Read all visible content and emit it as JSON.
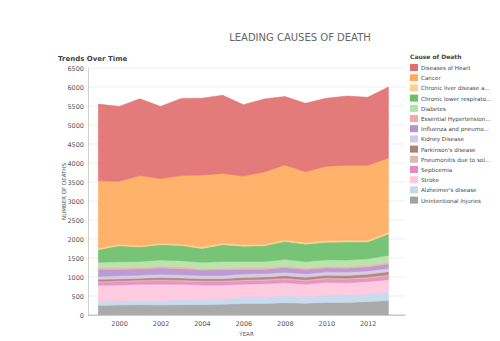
{
  "chart_data": {
    "type": "area",
    "title": "LEADING CAUSES OF DEATH",
    "subtitle": "Trends Over Time",
    "x_label": "YEAR",
    "y_label": "NUMBER OF DEATHS",
    "legend_title": "Cause of Death",
    "legend": "right",
    "stacked": true,
    "grid": true,
    "x": [
      1999,
      2000,
      2001,
      2002,
      2003,
      2004,
      2005,
      2006,
      2007,
      2008,
      2009,
      2010,
      2011,
      2012,
      2013
    ],
    "xlim": [
      1998.5,
      2013.8
    ],
    "xticks": [
      2000,
      2002,
      2004,
      2006,
      2008,
      2010,
      2012
    ],
    "ylim": [
      0,
      6500
    ],
    "yticks": [
      0,
      500,
      1000,
      1500,
      2000,
      2500,
      3000,
      3500,
      4000,
      4500,
      5000,
      5500,
      6000,
      6500
    ],
    "series": [
      {
        "name": "Diseases of Heart",
        "color": "#e0706e",
        "values": [
          2020,
          1970,
          2020,
          1900,
          2030,
          2020,
          2060,
          1880,
          1920,
          1800,
          1800,
          1790,
          1820,
          1790,
          1870
        ]
      },
      {
        "name": "Cancer",
        "color": "#ffab5e",
        "values": [
          1770,
          1660,
          1840,
          1700,
          1800,
          1890,
          1830,
          1800,
          1900,
          1970,
          1860,
          1950,
          1970,
          1970,
          1950
        ]
      },
      {
        "name": "Chronic liver disease a...",
        "color": "#ffcf91",
        "values": [
          40,
          40,
          40,
          40,
          40,
          45,
          45,
          45,
          45,
          45,
          45,
          50,
          50,
          50,
          50
        ]
      },
      {
        "name": "Chronic lower respirato...",
        "color": "#6cbf6a",
        "values": [
          330,
          420,
          380,
          400,
          400,
          360,
          440,
          400,
          410,
          470,
          460,
          460,
          470,
          440,
          560
        ]
      },
      {
        "name": "Diabetes",
        "color": "#b3e2a6",
        "values": [
          150,
          160,
          160,
          170,
          170,
          170,
          180,
          170,
          170,
          180,
          170,
          180,
          180,
          180,
          190
        ]
      },
      {
        "name": "Essential Hypertension...",
        "color": "#f7a8a8",
        "values": [
          40,
          40,
          40,
          40,
          40,
          40,
          40,
          40,
          40,
          40,
          40,
          40,
          40,
          40,
          40
        ]
      },
      {
        "name": "Influenza and pneumo...",
        "color": "#b592d0",
        "values": [
          180,
          170,
          160,
          170,
          160,
          140,
          150,
          120,
          110,
          120,
          110,
          100,
          100,
          100,
          110
        ]
      },
      {
        "name": "Kidney Disease",
        "color": "#d7c6e6",
        "values": [
          80,
          80,
          80,
          85,
          85,
          85,
          85,
          90,
          90,
          90,
          90,
          90,
          90,
          90,
          95
        ]
      },
      {
        "name": "Parkinson's disease",
        "color": "#b0806f",
        "values": [
          50,
          50,
          50,
          55,
          55,
          55,
          55,
          60,
          60,
          65,
          65,
          65,
          70,
          70,
          75
        ]
      },
      {
        "name": "Pneumonitis due to sol...",
        "color": "#dbbab2",
        "values": [
          30,
          30,
          30,
          30,
          30,
          30,
          30,
          30,
          30,
          30,
          30,
          30,
          30,
          30,
          30
        ]
      },
      {
        "name": "Septicemia",
        "color": "#e68ac6",
        "values": [
          80,
          80,
          80,
          90,
          80,
          80,
          80,
          90,
          90,
          90,
          90,
          90,
          90,
          90,
          100
        ]
      },
      {
        "name": "Stroke",
        "color": "#ffc7dd",
        "values": [
          430,
          420,
          420,
          430,
          410,
          380,
          360,
          350,
          350,
          340,
          330,
          340,
          320,
          330,
          340
        ]
      },
      {
        "name": "Alzheimer's disease",
        "color": "#c4d8ee",
        "values": [
          100,
          110,
          120,
          120,
          130,
          140,
          150,
          160,
          170,
          190,
          170,
          190,
          200,
          200,
          210
        ]
      },
      {
        "name": "Unintentional Injuries",
        "color": "#a3a3a3",
        "values": [
          250,
          260,
          270,
          260,
          270,
          270,
          280,
          300,
          300,
          320,
          310,
          330,
          330,
          350,
          380
        ]
      }
    ]
  }
}
